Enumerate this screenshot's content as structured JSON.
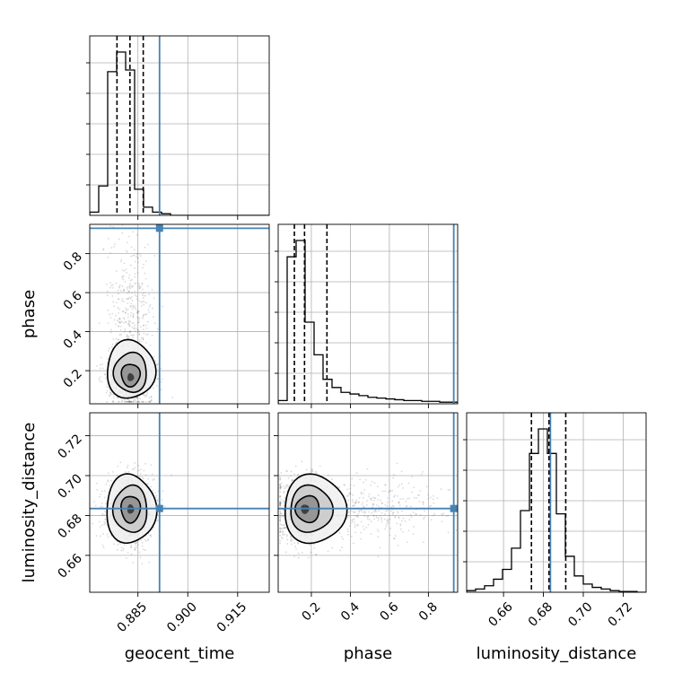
{
  "chart_data": {
    "type": "corner",
    "title": "",
    "parameters": [
      "geocent_time",
      "phase",
      "luminosity_distance"
    ],
    "truth_color": "#4682b4",
    "axes": {
      "geocent_time": {
        "label": "geocent_time",
        "range": [
          0.8705,
          0.9245
        ],
        "ticks": [
          0.885,
          0.9,
          0.915
        ],
        "tick_labels": [
          "0.885",
          "0.900",
          "0.915"
        ],
        "truth": 0.8915,
        "quantiles": [
          0.8787,
          0.8826,
          0.8866
        ]
      },
      "phase": {
        "label": "phase",
        "range": [
          0.03,
          0.95
        ],
        "ticks": [
          0.2,
          0.4,
          0.6,
          0.8
        ],
        "tick_labels": [
          "0.2",
          "0.4",
          "0.6",
          "0.8"
        ],
        "truth": 0.93,
        "quantiles": [
          0.113,
          0.165,
          0.28
        ]
      },
      "luminosity_distance": {
        "label": "luminosity_distance",
        "range": [
          0.6415,
          0.7315
        ],
        "ticks": [
          0.66,
          0.68,
          0.7,
          0.72
        ],
        "tick_labels": [
          "0.66",
          "0.68",
          "0.70",
          "0.72"
        ],
        "truth": 0.6835,
        "quantiles": [
          0.674,
          0.6828,
          0.6912
        ]
      }
    },
    "histograms": {
      "geocent_time": {
        "bin_edges": [
          0.8705,
          0.8732,
          0.8759,
          0.8786,
          0.8813,
          0.884,
          0.8867,
          0.8894,
          0.8921,
          0.8948,
          0.8975,
          0.9002,
          0.9029,
          0.9056,
          0.9083,
          0.911,
          0.9137,
          0.9164,
          0.9191,
          0.9218,
          0.9245
        ],
        "counts": [
          0.02,
          0.18,
          0.88,
          1.0,
          0.89,
          0.16,
          0.05,
          0.02,
          0.01,
          0,
          0,
          0,
          0,
          0,
          0,
          0,
          0,
          0,
          0,
          0
        ]
      },
      "phase": {
        "bin_edges": [
          0.03,
          0.076,
          0.122,
          0.168,
          0.214,
          0.26,
          0.306,
          0.352,
          0.398,
          0.444,
          0.49,
          0.536,
          0.582,
          0.628,
          0.674,
          0.72,
          0.766,
          0.812,
          0.858,
          0.904,
          0.95
        ],
        "counts": [
          0.02,
          0.9,
          1.0,
          0.5,
          0.3,
          0.15,
          0.1,
          0.07,
          0.06,
          0.05,
          0.04,
          0.035,
          0.03,
          0.025,
          0.02,
          0.02,
          0.015,
          0.015,
          0.01,
          0.01
        ]
      },
      "luminosity_distance": {
        "bin_edges": [
          0.6415,
          0.646,
          0.6505,
          0.655,
          0.6595,
          0.664,
          0.6685,
          0.673,
          0.6775,
          0.682,
          0.6865,
          0.691,
          0.6955,
          0.7,
          0.7045,
          0.709,
          0.7135,
          0.718,
          0.7225,
          0.727,
          0.7315
        ],
        "counts": [
          0.01,
          0.02,
          0.04,
          0.08,
          0.14,
          0.27,
          0.5,
          0.85,
          1.0,
          0.85,
          0.48,
          0.22,
          0.1,
          0.05,
          0.03,
          0.02,
          0.01,
          0.005,
          0.005,
          0
        ]
      }
    },
    "contours_2d": {
      "phase_vs_geocent_time": {
        "center": [
          0.8828,
          0.16
        ],
        "sigma": [
          0.0033,
          0.09
        ],
        "rho": 0.2
      },
      "luminosity_distance_vs_geocent_time": {
        "center": [
          0.8828,
          0.6832
        ],
        "sigma": [
          0.0034,
          0.0078
        ],
        "rho": 0.0
      },
      "luminosity_distance_vs_phase": {
        "center": [
          0.16,
          0.6832
        ],
        "sigma": [
          0.09,
          0.0078
        ],
        "rho": 0.0
      }
    },
    "grid": true
  }
}
